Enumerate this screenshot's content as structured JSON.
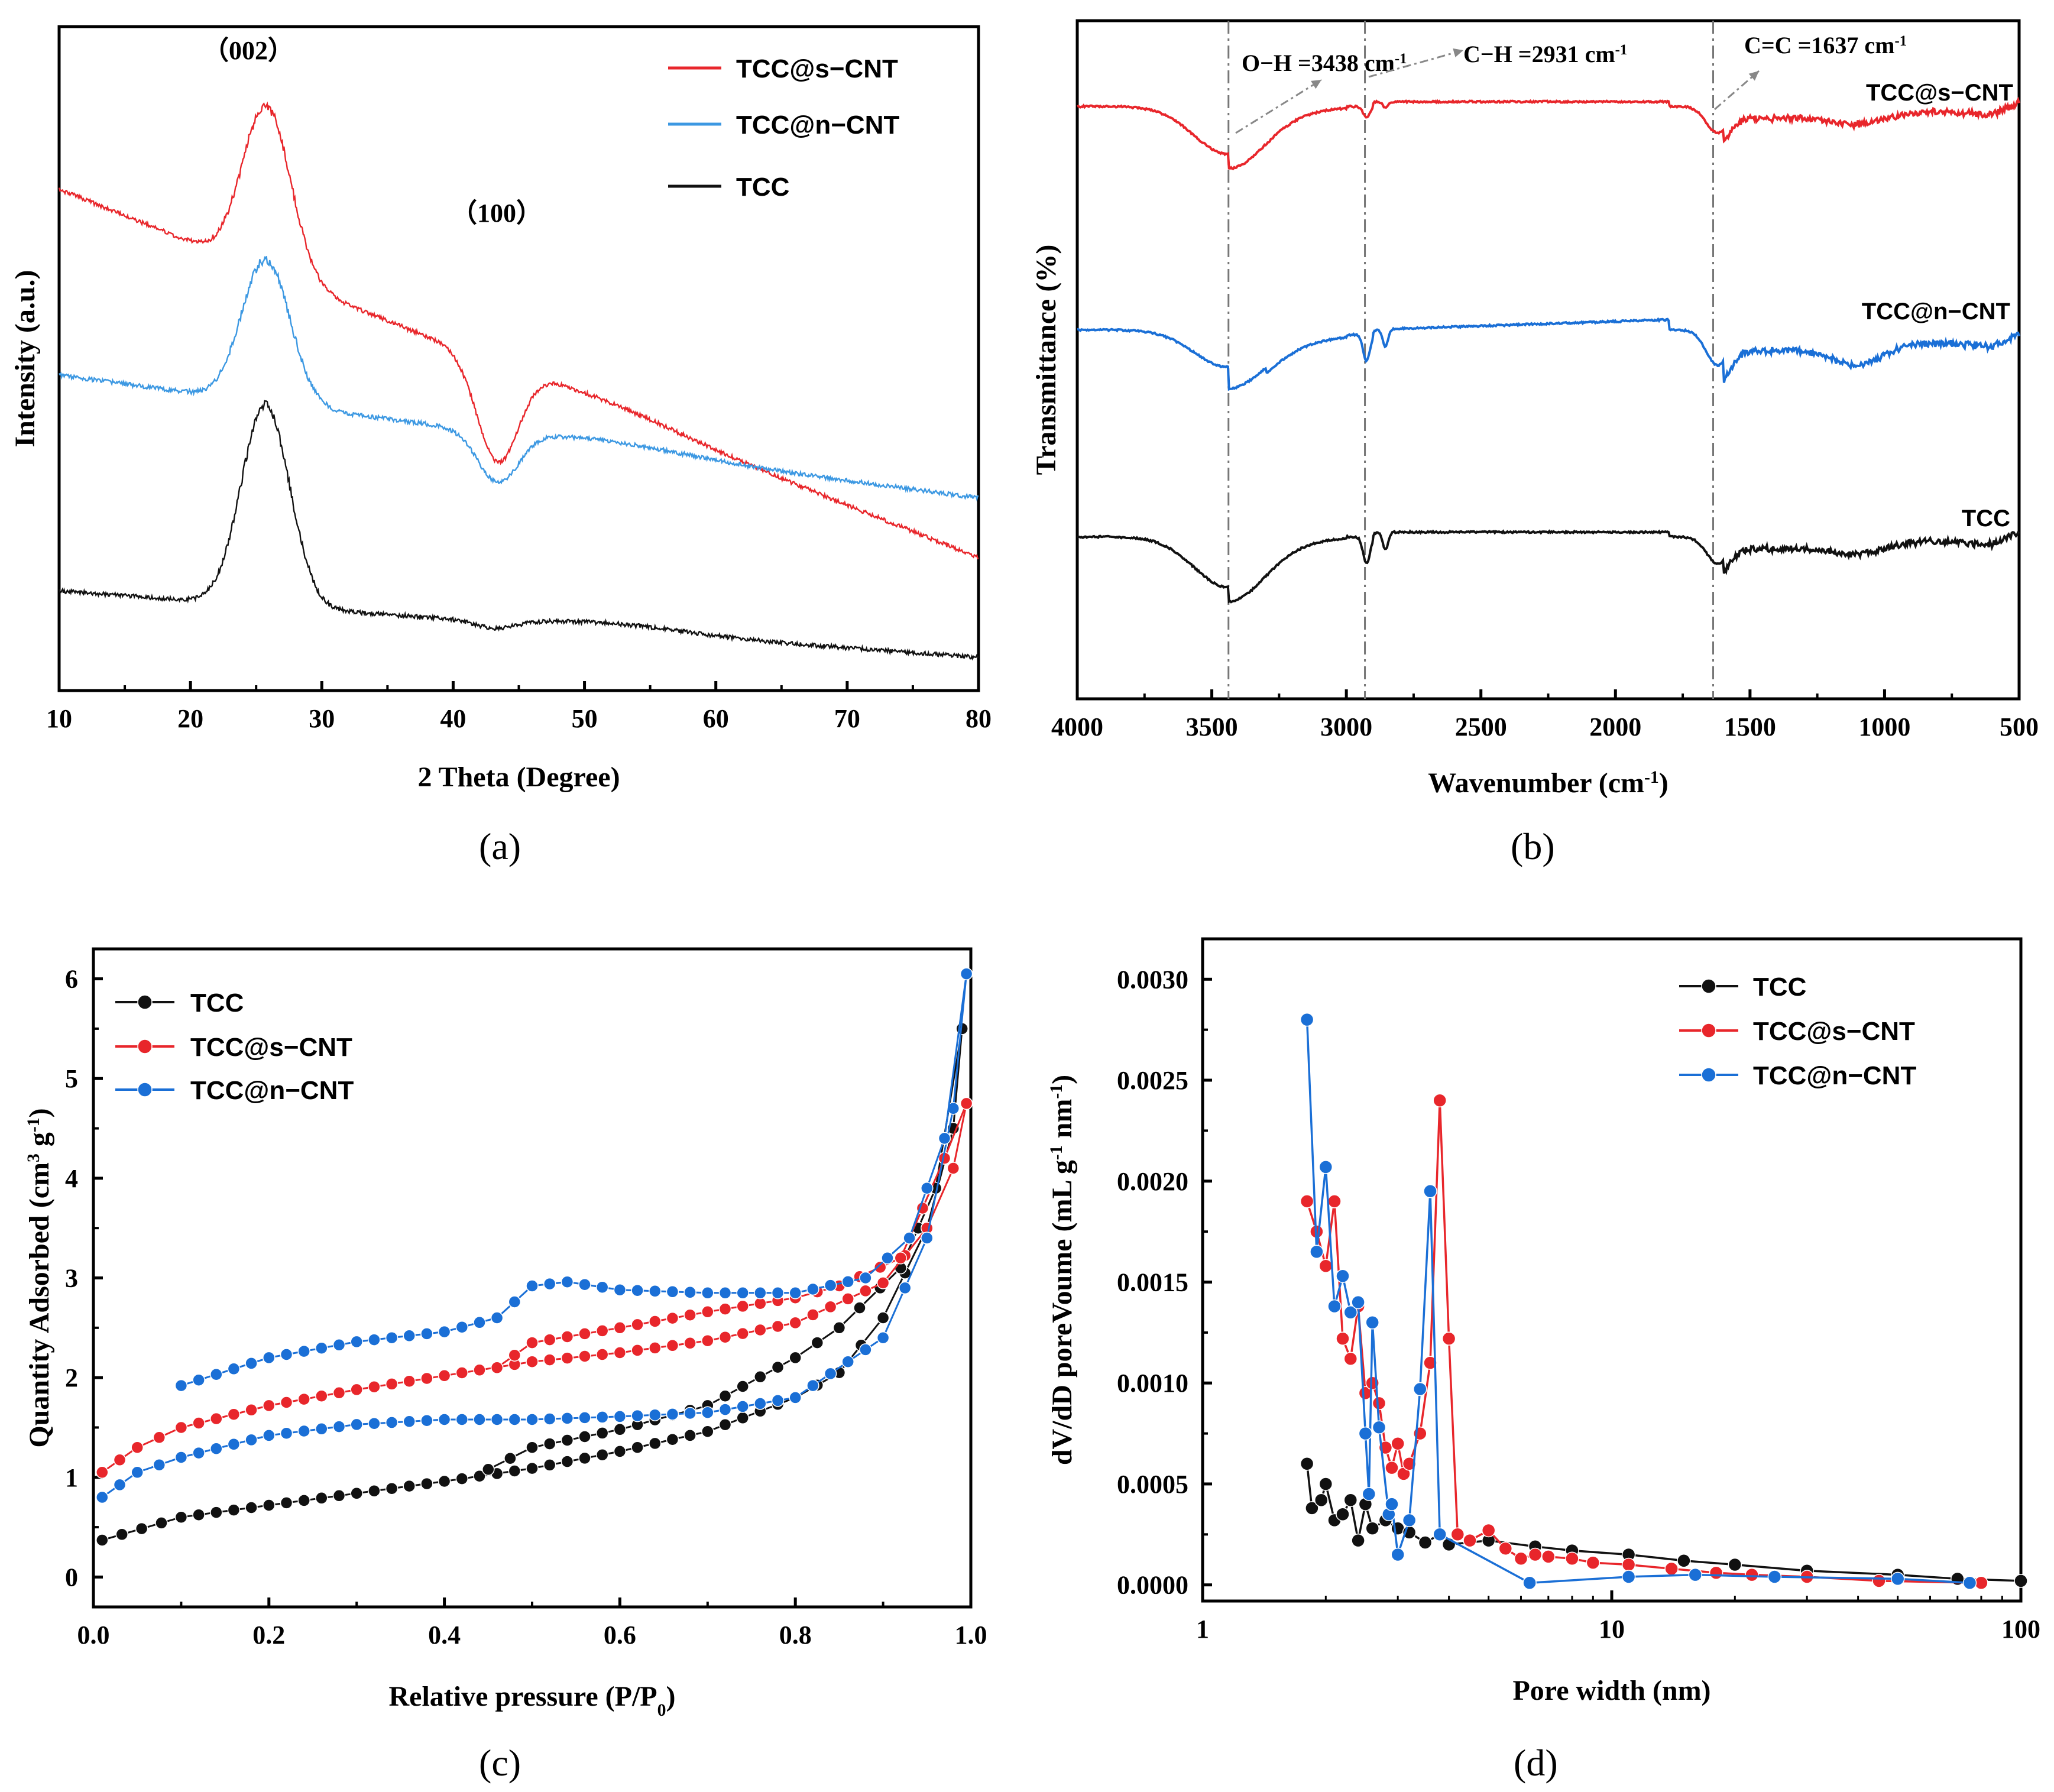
{
  "figure": {
    "captions": [
      "(a)",
      "(b)",
      "(c)",
      "(d)"
    ]
  },
  "chart_data": [
    {
      "id": "a",
      "type": "line",
      "xlabel": "2 Theta (Degree)",
      "ylabel": "Intensity (a.u.)",
      "xlim": [
        10,
        80
      ],
      "xticks": [
        "10",
        "20",
        "30",
        "40",
        "50",
        "60",
        "70",
        "80"
      ],
      "yticks": [],
      "peak_labels": [
        {
          "text": "（002）",
          "x": 26
        },
        {
          "text": "（100）",
          "x": 43.5
        }
      ],
      "legend": {
        "position": "top-right"
      },
      "series": [
        {
          "name": "TCC@s−CNT",
          "color": "#e8262b",
          "baseline_rel": 0.76,
          "peak002_rel": 0.12,
          "peak100_rel": 0.66,
          "end_rel": 0.8
        },
        {
          "name": "TCC@n−CNT",
          "color": "#3c98e2",
          "baseline_rel": 0.42,
          "peak002_rel": 0.35,
          "peak100_rel": 0.69,
          "end_rel": 0.71
        },
        {
          "name": "TCC",
          "color": "#111111",
          "baseline_rel": 0.16,
          "peak002_rel": 0.57,
          "peak100_rel": 0.91,
          "end_rel": 0.95
        }
      ]
    },
    {
      "id": "b",
      "type": "line",
      "xlabel": "Wavenumber (cm",
      "xlabel_sup": "-1",
      "xlabel_end": ")",
      "ylabel": "Transmittance (%)",
      "xlim": [
        4000,
        500
      ],
      "xticks": [
        "4000",
        "3500",
        "3000",
        "2500",
        "2000",
        "1500",
        "1000",
        "500"
      ],
      "annotations": [
        {
          "text": "O−H =3438 cm",
          "sup": "-1",
          "x": 3438
        },
        {
          "text": "C−H =2931 cm",
          "sup": "-1",
          "x": 2931
        },
        {
          "text": "C=C =1637 cm",
          "sup": "-1",
          "x": 1637
        }
      ],
      "series": [
        {
          "name": "TCC@s−CNT",
          "color": "#e8262b"
        },
        {
          "name": "TCC@n−CNT",
          "color": "#1a6fd6"
        },
        {
          "name": "TCC",
          "color": "#111111"
        }
      ]
    },
    {
      "id": "c",
      "type": "scatter",
      "xlabel": "Relative pressure (P/P",
      "xlabel_sub": "0",
      "xlabel_end": ")",
      "ylabel": "Quantity Adsorbed (cm",
      "ylabel_sup": "3",
      "ylabel_mid": " g",
      "ylabel_sup2": "-1",
      "ylabel_end": ")",
      "xlim": [
        0.0,
        1.0
      ],
      "ylim": [
        -0.3,
        6.3
      ],
      "xticks": [
        "0.0",
        "0.2",
        "0.4",
        "0.6",
        "0.8",
        "1.0"
      ],
      "yticks": [
        "0",
        "1",
        "2",
        "3",
        "4",
        "5",
        "6"
      ],
      "legend": {
        "position": "top-left"
      },
      "series": [
        {
          "name": "TCC",
          "color": "#111111",
          "adsorption": [
            [
              0.01,
              0.37
            ],
            [
              0.1,
              0.6
            ],
            [
              0.2,
              0.72
            ],
            [
              0.3,
              0.84
            ],
            [
              0.4,
              0.96
            ],
            [
              0.5,
              1.09
            ],
            [
              0.6,
              1.26
            ],
            [
              0.7,
              1.46
            ],
            [
              0.8,
              1.8
            ],
            [
              0.85,
              2.05
            ],
            [
              0.9,
              2.6
            ],
            [
              0.95,
              3.5
            ],
            [
              0.98,
              4.5
            ],
            [
              0.99,
              5.5
            ]
          ],
          "desorption": [
            [
              0.99,
              5.5
            ],
            [
              0.96,
              3.9
            ],
            [
              0.92,
              3.1
            ],
            [
              0.85,
              2.5
            ],
            [
              0.8,
              2.2
            ],
            [
              0.7,
              1.72
            ],
            [
              0.6,
              1.48
            ],
            [
              0.5,
              1.3
            ],
            [
              0.45,
              1.08
            ]
          ]
        },
        {
          "name": "TCC@s−CNT",
          "color": "#e8262b",
          "adsorption": [
            [
              0.01,
              1.05
            ],
            [
              0.05,
              1.3
            ],
            [
              0.1,
              1.5
            ],
            [
              0.2,
              1.72
            ],
            [
              0.3,
              1.88
            ],
            [
              0.4,
              2.02
            ],
            [
              0.5,
              2.16
            ],
            [
              0.6,
              2.25
            ],
            [
              0.7,
              2.37
            ],
            [
              0.8,
              2.55
            ],
            [
              0.9,
              2.95
            ],
            [
              0.95,
              3.5
            ],
            [
              0.98,
              4.1
            ],
            [
              0.995,
              4.75
            ]
          ],
          "desorption": [
            [
              0.995,
              4.75
            ],
            [
              0.97,
              4.2
            ],
            [
              0.92,
              3.2
            ],
            [
              0.85,
              2.92
            ],
            [
              0.8,
              2.8
            ],
            [
              0.7,
              2.66
            ],
            [
              0.6,
              2.5
            ],
            [
              0.5,
              2.35
            ],
            [
              0.46,
              2.1
            ]
          ]
        },
        {
          "name": "TCC@n−CNT",
          "color": "#1a6fd6",
          "adsorption": [
            [
              0.01,
              0.8
            ],
            [
              0.05,
              1.05
            ],
            [
              0.1,
              1.2
            ],
            [
              0.2,
              1.42
            ],
            [
              0.3,
              1.53
            ],
            [
              0.4,
              1.58
            ],
            [
              0.5,
              1.58
            ],
            [
              0.6,
              1.61
            ],
            [
              0.7,
              1.65
            ],
            [
              0.8,
              1.8
            ],
            [
              0.9,
              2.4
            ],
            [
              0.95,
              3.4
            ],
            [
              0.98,
              4.7
            ],
            [
              0.995,
              6.05
            ]
          ],
          "desorption": [
            [
              0.995,
              6.05
            ],
            [
              0.97,
              4.4
            ],
            [
              0.93,
              3.4
            ],
            [
              0.88,
              3.0
            ],
            [
              0.8,
              2.85
            ],
            [
              0.7,
              2.85
            ],
            [
              0.6,
              2.88
            ],
            [
              0.54,
              2.96
            ],
            [
              0.5,
              2.92
            ],
            [
              0.46,
              2.6
            ],
            [
              0.4,
              2.46
            ],
            [
              0.3,
              2.36
            ],
            [
              0.2,
              2.2
            ],
            [
              0.1,
              1.92
            ]
          ]
        }
      ]
    },
    {
      "id": "d",
      "type": "scatter",
      "xscale": "log",
      "xlabel": "Pore width (nm)",
      "ylabel": "dV/dD poreVoume (mL g",
      "ylabel_sup": "-1",
      "ylabel_mid": " nm",
      "ylabel_sup2": "-1",
      "ylabel_end": ")",
      "xlim": [
        1,
        100
      ],
      "ylim": [
        -8e-05,
        0.0032
      ],
      "xticks": [
        "1",
        "10",
        "100"
      ],
      "yticks": [
        "0.0000",
        "0.0005",
        "0.0010",
        "0.0015",
        "0.0020",
        "0.0025",
        "0.0030"
      ],
      "legend": {
        "position": "top-right"
      },
      "series": [
        {
          "name": "TCC",
          "color": "#111111",
          "points": [
            [
              1.8,
              0.0006
            ],
            [
              1.85,
              0.00038
            ],
            [
              1.95,
              0.00042
            ],
            [
              2.0,
              0.0005
            ],
            [
              2.1,
              0.00032
            ],
            [
              2.2,
              0.00035
            ],
            [
              2.3,
              0.00042
            ],
            [
              2.4,
              0.00022
            ],
            [
              2.5,
              0.0004
            ],
            [
              2.6,
              0.00028
            ],
            [
              2.8,
              0.00032
            ],
            [
              3.0,
              0.00028
            ],
            [
              3.2,
              0.00026
            ],
            [
              3.5,
              0.00021
            ],
            [
              3.8,
              0.00025
            ],
            [
              4.0,
              0.0002
            ],
            [
              5.0,
              0.00022
            ],
            [
              6.5,
              0.00019
            ],
            [
              8,
              0.00017
            ],
            [
              11,
              0.00015
            ],
            [
              15,
              0.00012
            ],
            [
              20,
              0.0001
            ],
            [
              30,
              7e-05
            ],
            [
              50,
              5e-05
            ],
            [
              70,
              3e-05
            ],
            [
              100,
              2e-05
            ]
          ]
        },
        {
          "name": "TCC@s−CNT",
          "color": "#e8262b",
          "points": [
            [
              1.8,
              0.0019
            ],
            [
              1.9,
              0.00175
            ],
            [
              2.0,
              0.00158
            ],
            [
              2.1,
              0.0019
            ],
            [
              2.2,
              0.00122
            ],
            [
              2.3,
              0.00112
            ],
            [
              2.4,
              0.00138
            ],
            [
              2.5,
              0.00095
            ],
            [
              2.6,
              0.001
            ],
            [
              2.7,
              0.0009
            ],
            [
              2.8,
              0.00068
            ],
            [
              2.9,
              0.00058
            ],
            [
              3.0,
              0.0007
            ],
            [
              3.1,
              0.00055
            ],
            [
              3.2,
              0.0006
            ],
            [
              3.4,
              0.00075
            ],
            [
              3.6,
              0.0011
            ],
            [
              3.8,
              0.0024
            ],
            [
              4.0,
              0.00122
            ],
            [
              4.2,
              0.00025
            ],
            [
              4.5,
              0.00022
            ],
            [
              5,
              0.00027
            ],
            [
              5.5,
              0.00018
            ],
            [
              6,
              0.00013
            ],
            [
              6.5,
              0.00015
            ],
            [
              7,
              0.00014
            ],
            [
              8,
              0.00013
            ],
            [
              9,
              0.00011
            ],
            [
              11,
              0.0001
            ],
            [
              14,
              8e-05
            ],
            [
              18,
              6e-05
            ],
            [
              22,
              5e-05
            ],
            [
              30,
              4e-05
            ],
            [
              45,
              2e-05
            ],
            [
              80,
              1e-05
            ]
          ]
        },
        {
          "name": "TCC@n−CNT",
          "color": "#1a6fd6",
          "points": [
            [
              1.8,
              0.0028
            ],
            [
              1.9,
              0.00165
            ],
            [
              2.0,
              0.00207
            ],
            [
              2.1,
              0.00138
            ],
            [
              2.2,
              0.00153
            ],
            [
              2.3,
              0.00135
            ],
            [
              2.4,
              0.0014
            ],
            [
              2.5,
              0.00075
            ],
            [
              2.55,
              0.00045
            ],
            [
              2.6,
              0.0013
            ],
            [
              2.7,
              0.00078
            ],
            [
              2.85,
              0.00035
            ],
            [
              2.9,
              0.0004
            ],
            [
              3.0,
              0.00015
            ],
            [
              3.2,
              0.00032
            ],
            [
              3.4,
              0.00097
            ],
            [
              3.6,
              0.00195
            ],
            [
              3.8,
              0.00025
            ],
            [
              6.3,
              1e-05
            ],
            [
              11,
              4e-05
            ],
            [
              16,
              5e-05
            ],
            [
              25,
              4e-05
            ],
            [
              50,
              3e-05
            ],
            [
              75,
              1e-05
            ]
          ]
        }
      ]
    }
  ]
}
